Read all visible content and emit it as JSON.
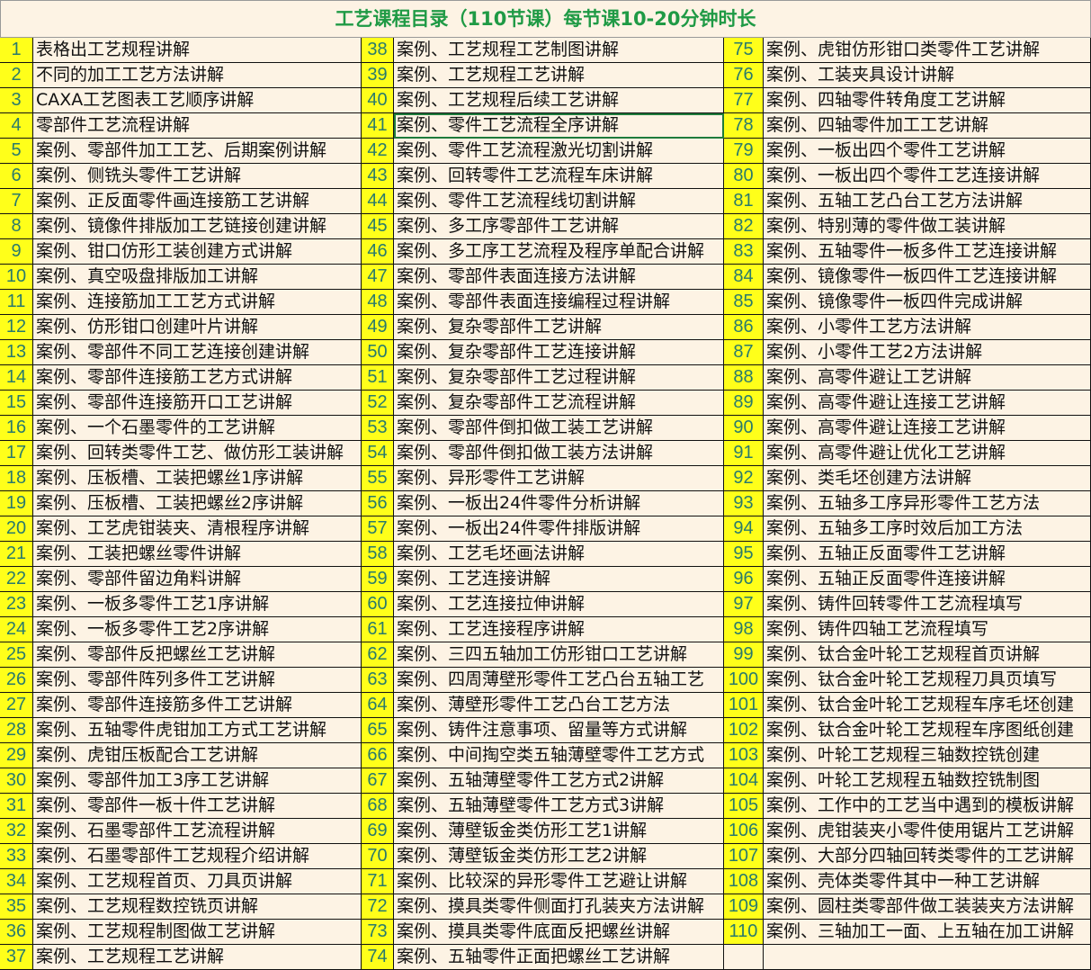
{
  "title": "工艺课程目录（110节课）每节课10-20分钟时长",
  "colors": {
    "number_bg": "#ffff1a",
    "number_text": "#2a7a6c",
    "title_text": "#1f9a45",
    "cell_bg": "#fdf3e4"
  },
  "selected_cell": "41",
  "items": [
    {
      "n": "1",
      "t": "表格出工艺规程讲解"
    },
    {
      "n": "2",
      "t": "不同的加工工艺方法讲解"
    },
    {
      "n": "3",
      "t": "CAXA工艺图表工艺顺序讲解"
    },
    {
      "n": "4",
      "t": "零部件工艺流程讲解"
    },
    {
      "n": "5",
      "t": "案例、零部件加工工艺、后期案例讲解"
    },
    {
      "n": "6",
      "t": "案例、侧铣头零件工艺讲解"
    },
    {
      "n": "7",
      "t": "案例、正反面零件画连接筋工艺讲解"
    },
    {
      "n": "8",
      "t": "案例、镜像件排版加工艺链接创建讲解"
    },
    {
      "n": "9",
      "t": "案例、钳口仿形工装创建方式讲解"
    },
    {
      "n": "10",
      "t": "案例、真空吸盘排版加工讲解"
    },
    {
      "n": "11",
      "t": "案例、连接筋加工工艺方式讲解"
    },
    {
      "n": "12",
      "t": "案例、仿形钳口创建叶片讲解"
    },
    {
      "n": "13",
      "t": "案例、零部件不同工艺连接创建讲解"
    },
    {
      "n": "14",
      "t": "案例、零部件连接筋工艺方式讲解"
    },
    {
      "n": "15",
      "t": "案例、零部件连接筋开口工艺讲解"
    },
    {
      "n": "16",
      "t": "案例、一个石墨零件的工艺讲解"
    },
    {
      "n": "17",
      "t": "案例、回转类零件工艺、做仿形工装讲解"
    },
    {
      "n": "18",
      "t": "案例、压板槽、工装把螺丝1序讲解"
    },
    {
      "n": "19",
      "t": "案例、压板槽、工装把螺丝2序讲解"
    },
    {
      "n": "20",
      "t": "案例、工艺虎钳装夹、清根程序讲解"
    },
    {
      "n": "21",
      "t": "案例、工装把螺丝零件讲解"
    },
    {
      "n": "22",
      "t": "案例、零部件留边角料讲解"
    },
    {
      "n": "23",
      "t": "案例、一板多零件工艺1序讲解"
    },
    {
      "n": "24",
      "t": "案例、一板多零件工艺2序讲解"
    },
    {
      "n": "25",
      "t": "案例、零部件反把螺丝工艺讲解"
    },
    {
      "n": "26",
      "t": "案例、零部件阵列多件工艺讲解"
    },
    {
      "n": "27",
      "t": "案例、零部件连接筋多件工艺讲解"
    },
    {
      "n": "28",
      "t": "案例、五轴零件虎钳加工方式工艺讲解"
    },
    {
      "n": "29",
      "t": "案例、虎钳压板配合工艺讲解"
    },
    {
      "n": "30",
      "t": "案例、零部件加工3序工艺讲解"
    },
    {
      "n": "31",
      "t": "案例、零部件一板十件工艺讲解"
    },
    {
      "n": "32",
      "t": "案例、石墨零部件工艺流程讲解"
    },
    {
      "n": "33",
      "t": "案例、石墨零部件工艺规程介绍讲解"
    },
    {
      "n": "34",
      "t": "案例、工艺规程首页、刀具页讲解"
    },
    {
      "n": "35",
      "t": "案例、工艺规程数控铣页讲解"
    },
    {
      "n": "36",
      "t": "案例、工艺规程制图做工艺讲解"
    },
    {
      "n": "37",
      "t": "案例、工艺规程工艺讲解"
    },
    {
      "n": "38",
      "t": "案例、工艺规程工艺制图讲解"
    },
    {
      "n": "39",
      "t": "案例、工艺规程工艺讲解"
    },
    {
      "n": "40",
      "t": "案例、工艺规程后续工艺讲解"
    },
    {
      "n": "41",
      "t": "案例、零件工艺流程全序讲解"
    },
    {
      "n": "42",
      "t": "案例、零件工艺流程激光切割讲解"
    },
    {
      "n": "43",
      "t": "案例、回转零件工艺流程车床讲解"
    },
    {
      "n": "44",
      "t": "案例、零件工艺流程线切割讲解"
    },
    {
      "n": "45",
      "t": "案例、多工序零部件工艺讲解"
    },
    {
      "n": "46",
      "t": "案例、多工序工艺流程及程序单配合讲解"
    },
    {
      "n": "47",
      "t": "案例、零部件表面连接方法讲解"
    },
    {
      "n": "48",
      "t": "案例、零部件表面连接编程过程讲解"
    },
    {
      "n": "49",
      "t": "案例、复杂零部件工艺讲解"
    },
    {
      "n": "50",
      "t": "案例、复杂零部件工艺连接讲解"
    },
    {
      "n": "51",
      "t": "案例、复杂零部件工艺过程讲解"
    },
    {
      "n": "52",
      "t": "案例、复杂零部件工艺流程讲解"
    },
    {
      "n": "53",
      "t": "案例、零部件倒扣做工装工艺讲解"
    },
    {
      "n": "54",
      "t": "案例、零部件倒扣做工装方法讲解"
    },
    {
      "n": "55",
      "t": "案例、异形零件工艺讲解"
    },
    {
      "n": "56",
      "t": "案例、一板出24件零件分析讲解"
    },
    {
      "n": "57",
      "t": "案例、一板出24件零件排版讲解"
    },
    {
      "n": "58",
      "t": "案例、工艺毛坯画法讲解"
    },
    {
      "n": "59",
      "t": "案例、工艺连接讲解"
    },
    {
      "n": "60",
      "t": "案例、工艺连接拉伸讲解"
    },
    {
      "n": "61",
      "t": "案例、工艺连接程序讲解"
    },
    {
      "n": "62",
      "t": "案例、三四五轴加工仿形钳口工艺讲解"
    },
    {
      "n": "63",
      "t": "案例、四周薄壁形零件工艺凸台五轴工艺"
    },
    {
      "n": "64",
      "t": "案例、薄壁形零件工艺凸台工艺方法"
    },
    {
      "n": "65",
      "t": "案例、铸件注意事项、留量等方式讲解"
    },
    {
      "n": "66",
      "t": "案例、中间掏空类五轴薄壁零件工艺方式"
    },
    {
      "n": "67",
      "t": "案例、五轴薄壁零件工艺方式2讲解"
    },
    {
      "n": "68",
      "t": "案例、五轴薄壁零件工艺方式3讲解"
    },
    {
      "n": "69",
      "t": "案例、薄壁钣金类仿形工艺1讲解"
    },
    {
      "n": "70",
      "t": "案例、薄壁钣金类仿形工艺2讲解"
    },
    {
      "n": "71",
      "t": "案例、比较深的异形零件工艺避让讲解"
    },
    {
      "n": "72",
      "t": "案例、摸具类零件侧面打孔装夹方法讲解"
    },
    {
      "n": "73",
      "t": "案例、摸具类零件底面反把螺丝讲解"
    },
    {
      "n": "74",
      "t": "案例、五轴零件正面把螺丝工艺讲解"
    },
    {
      "n": "75",
      "t": "案例、虎钳仿形钳口类零件工艺讲解"
    },
    {
      "n": "76",
      "t": "案例、工装夹具设计讲解"
    },
    {
      "n": "77",
      "t": "案例、四轴零件转角度工艺讲解"
    },
    {
      "n": "78",
      "t": "案例、四轴零件加工工艺讲解"
    },
    {
      "n": "79",
      "t": "案例、一板出四个零件工艺讲解"
    },
    {
      "n": "80",
      "t": "案例、一板出四个零件工艺连接讲解"
    },
    {
      "n": "81",
      "t": "案例、五轴工艺凸台工艺方法讲解"
    },
    {
      "n": "82",
      "t": "案例、特别薄的零件做工装讲解"
    },
    {
      "n": "83",
      "t": "案例、五轴零件一板多件工艺连接讲解"
    },
    {
      "n": "84",
      "t": "案例、镜像零件一板四件工艺连接讲解"
    },
    {
      "n": "85",
      "t": "案例、镜像零件一板四件完成讲解"
    },
    {
      "n": "86",
      "t": "案例、小零件工艺方法讲解"
    },
    {
      "n": "87",
      "t": "案例、小零件工艺2方法讲解"
    },
    {
      "n": "88",
      "t": "案例、高零件避让工艺讲解"
    },
    {
      "n": "89",
      "t": "案例、高零件避让连接工艺讲解"
    },
    {
      "n": "90",
      "t": "案例、高零件避让连接工艺讲解"
    },
    {
      "n": "91",
      "t": "案例、高零件避让优化工艺讲解"
    },
    {
      "n": "92",
      "t": "案例、类毛坯创建方法讲解"
    },
    {
      "n": "93",
      "t": "案例、五轴多工序异形零件工艺方法"
    },
    {
      "n": "94",
      "t": "案例、五轴多工序时效后加工方法"
    },
    {
      "n": "95",
      "t": "案例、五轴正反面零件工艺讲解"
    },
    {
      "n": "96",
      "t": "案例、五轴正反面零件连接讲解"
    },
    {
      "n": "97",
      "t": "案例、铸件回转零件工艺流程填写"
    },
    {
      "n": "98",
      "t": "案例、铸件四轴工艺流程填写"
    },
    {
      "n": "99",
      "t": "案例、钛合金叶轮工艺规程首页讲解"
    },
    {
      "n": "100",
      "t": "案例、钛合金叶轮工艺规程刀具页填写"
    },
    {
      "n": "101",
      "t": "案例、钛合金叶轮工艺规程车序毛坯创建"
    },
    {
      "n": "102",
      "t": "案例、钛合金叶轮工艺规程车序图纸创建"
    },
    {
      "n": "103",
      "t": "案例、叶轮工艺规程三轴数控铣创建"
    },
    {
      "n": "104",
      "t": "案例、叶轮工艺规程五轴数控铣制图"
    },
    {
      "n": "105",
      "t": "案例、工作中的工艺当中遇到的模板讲解"
    },
    {
      "n": "106",
      "t": "案例、虎钳装夹小零件使用锯片工艺讲解"
    },
    {
      "n": "107",
      "t": "案例、大部分四轴回转类零件的工艺讲解"
    },
    {
      "n": "108",
      "t": "案例、壳体类零件其中一种工艺讲解"
    },
    {
      "n": "109",
      "t": "案例、圆柱类零部件做工装装夹方法讲解"
    },
    {
      "n": "110",
      "t": "案例、三轴加工一面、上五轴在加工讲解"
    }
  ]
}
